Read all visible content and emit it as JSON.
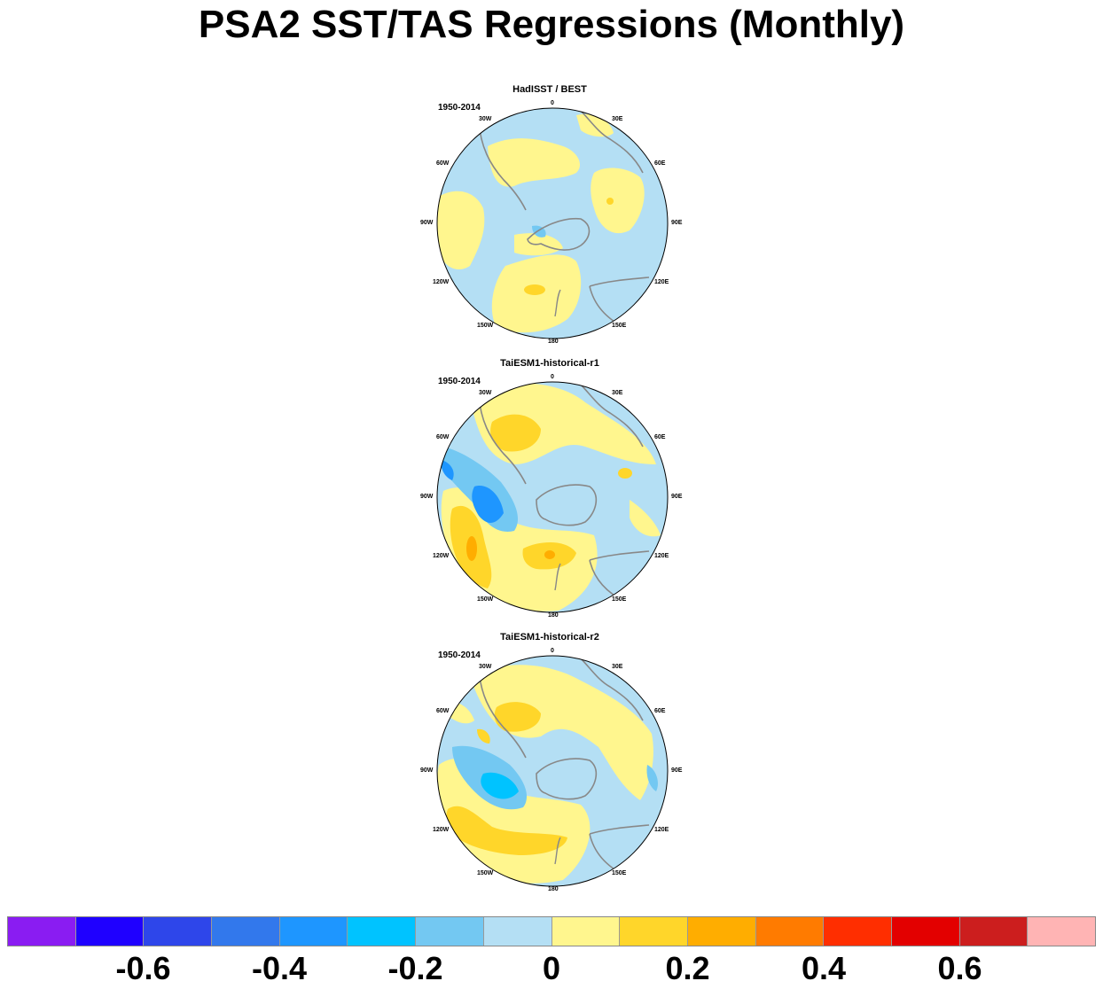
{
  "title": "PSA2 SST/TAS Regressions (Monthly)",
  "lon_labels": [
    "0",
    "30E",
    "60E",
    "90E",
    "120E",
    "150E",
    "180",
    "150W",
    "120W",
    "90W",
    "60W",
    "30W"
  ],
  "panels": [
    {
      "title": "HadISST / BEST",
      "period": "1950-2014"
    },
    {
      "title": "TaiESM1-historical-r1",
      "period": "1950-2014"
    },
    {
      "title": "TaiESM1-historical-r2",
      "period": "1950-2014"
    }
  ],
  "colors": {
    "ocean_neutral_negative": "#b4dff4",
    "neutral_positive": "#fff68e",
    "land_outline": "#888888"
  },
  "chart_data": {
    "type": "heatmap",
    "title": "PSA2 SST/TAS Regressions (Monthly)",
    "projection": "south-polar-stereographic",
    "colorbar": {
      "boxes": [
        "#8a1cf2",
        "#1f00ff",
        "#2e46ea",
        "#3278ec",
        "#1e96ff",
        "#00c3ff",
        "#73c8f2",
        "#b4dff4",
        "#fff68e",
        "#ffd62a",
        "#ffad00",
        "#ff7b00",
        "#ff2e00",
        "#e30000",
        "#cc1e1e",
        "#ffb4b4"
      ],
      "ticks": [
        "-0.6",
        "-0.4",
        "-0.2",
        "0",
        "0.2",
        "0.4",
        "0.6"
      ],
      "tick_values": [
        -0.6,
        -0.4,
        -0.2,
        0,
        0.2,
        0.4,
        0.6
      ],
      "levels": [
        -0.7,
        -0.6,
        -0.5,
        -0.4,
        -0.3,
        -0.2,
        -0.1,
        0,
        0.1,
        0.2,
        0.3,
        0.4,
        0.5,
        0.6,
        0.7
      ]
    }
  }
}
